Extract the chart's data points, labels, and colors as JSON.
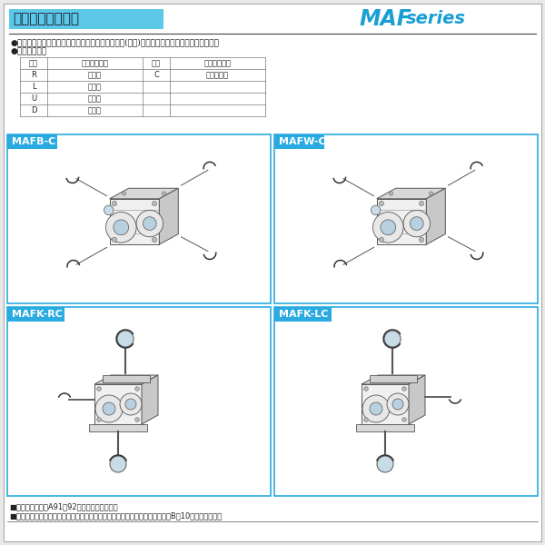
{
  "bg_color": "#e8e8e8",
  "page_bg": "#ffffff",
  "title_text": "軸配置と回転方向",
  "title_bg": "#5cc8e8",
  "title_color": "#1a1a2e",
  "brand_MAF": "MAF",
  "brand_series": "series",
  "brand_color": "#1a9fd4",
  "bullet1": "●軸配置は入力軸またはモータを手前にして出力軸(青色)の出ている方向で決定して下さい。",
  "bullet2": "●軸配置の記号",
  "table_headers": [
    "記号",
    "出力軸の方向",
    "記号",
    "出力軸の方向"
  ],
  "table_rows": [
    [
      "R",
      "右　側",
      "C",
      "出力軸固定"
    ],
    [
      "L",
      "左　側",
      "",
      ""
    ],
    [
      "U",
      "上　側",
      "",
      ""
    ],
    [
      "D",
      "下　側",
      "",
      ""
    ]
  ],
  "box1_label": "MAFB-C",
  "box2_label": "MAFW-C",
  "box3_label": "MAFK-RC",
  "box4_label": "MAFK-LC",
  "box_label_bg": "#29abe2",
  "box_label_color": "#ffffff",
  "box_border": "#29abe2",
  "footer1": "■軸配置の詳細はA91・92を参照して下さい。",
  "footer2": "■特殊な取付状態については、当社へお問い合わせ下さい。なお、参考としてB－10をご覧下さい。"
}
